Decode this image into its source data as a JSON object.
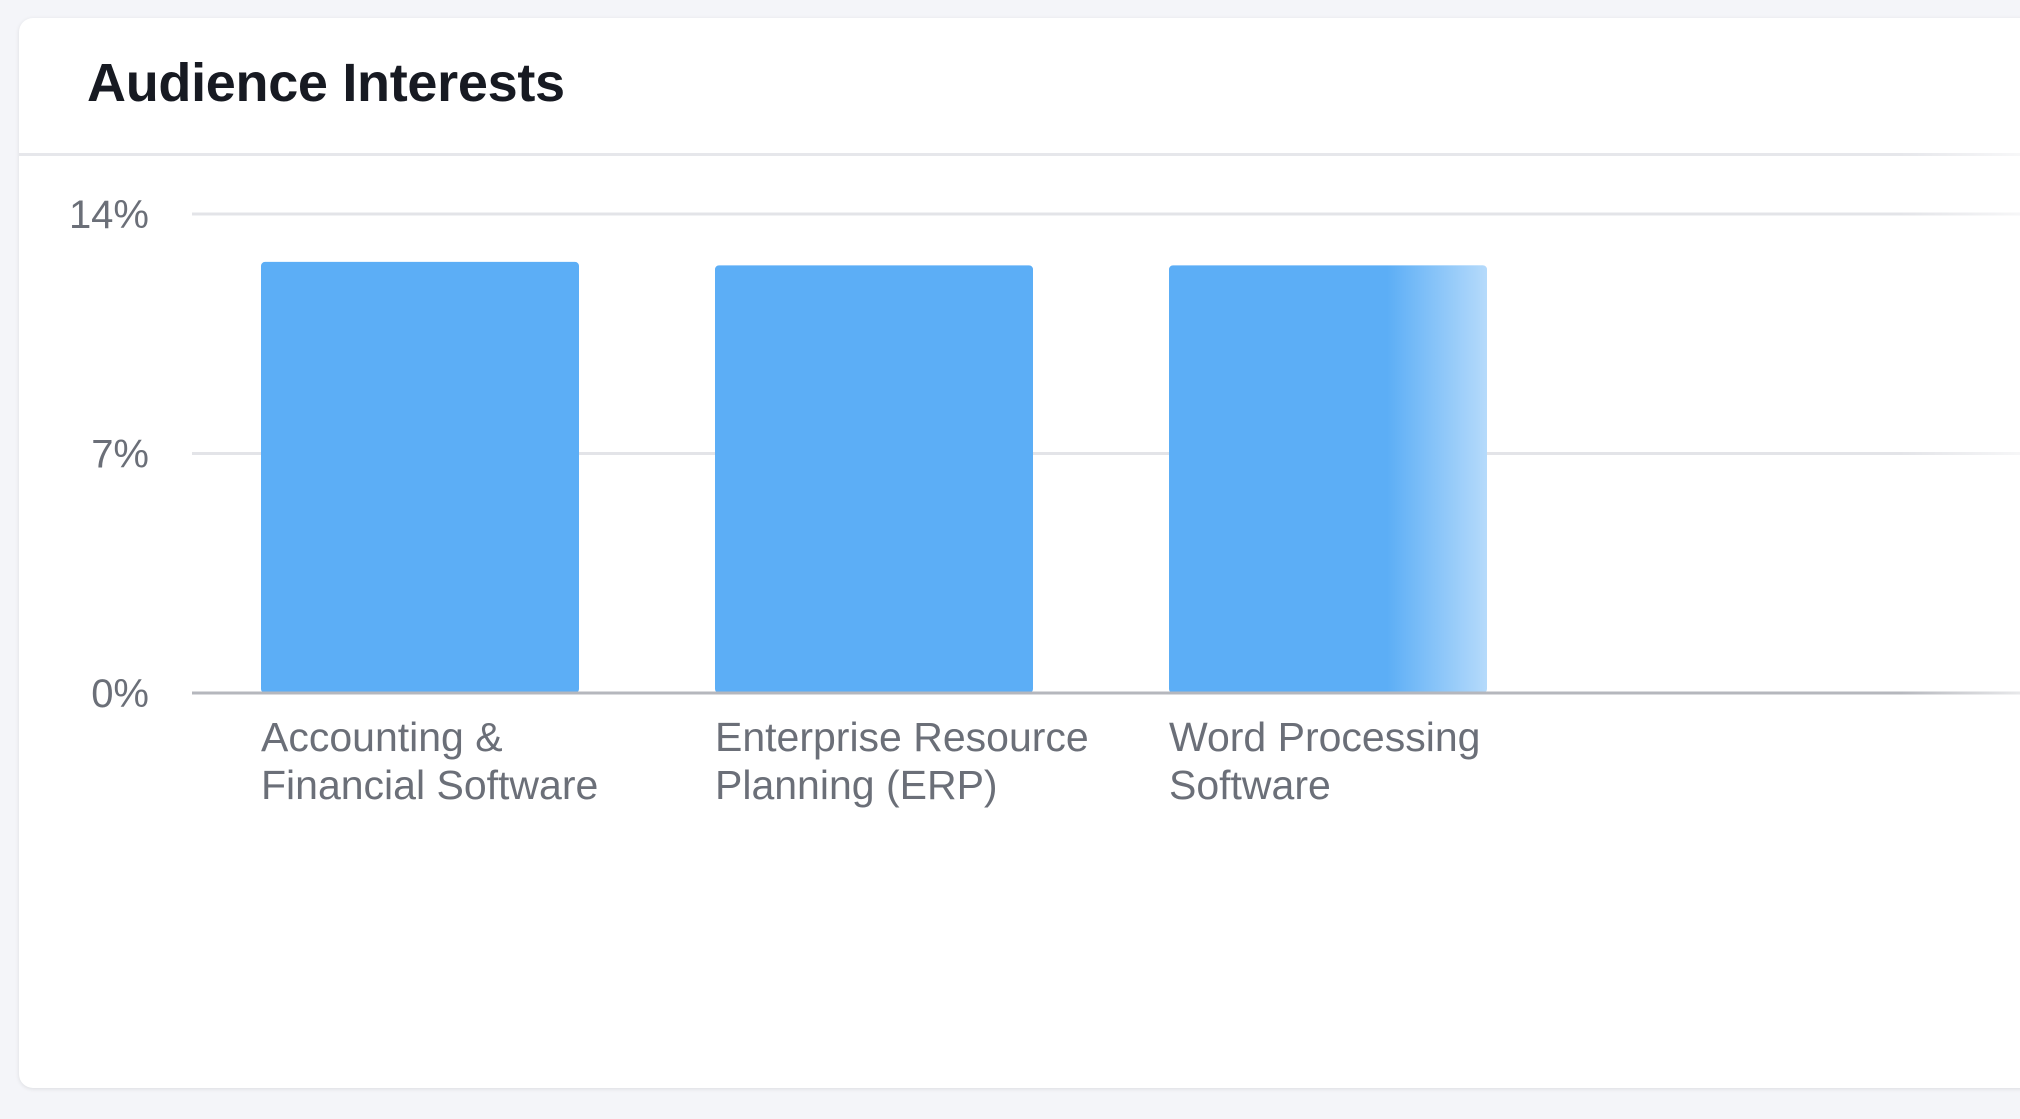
{
  "card": {
    "title": "Audience Interests"
  },
  "colors": {
    "bar": "#5caef6",
    "grid": "#e3e4e8",
    "axis": "#b5b7bd"
  },
  "chart_data": {
    "type": "bar",
    "categories": [
      [
        "Accounting &",
        "Financial Software"
      ],
      [
        "Enterprise Resource",
        "Planning (ERP)"
      ],
      [
        "Word Processing",
        "Software"
      ]
    ],
    "values": [
      12.6,
      12.5,
      12.5
    ],
    "ylim": [
      0,
      14
    ],
    "yticks": [
      {
        "value": 0,
        "label": "0%"
      },
      {
        "value": 7,
        "label": "7%"
      },
      {
        "value": 14,
        "label": "14%"
      }
    ],
    "grid": true,
    "legend": "none"
  }
}
